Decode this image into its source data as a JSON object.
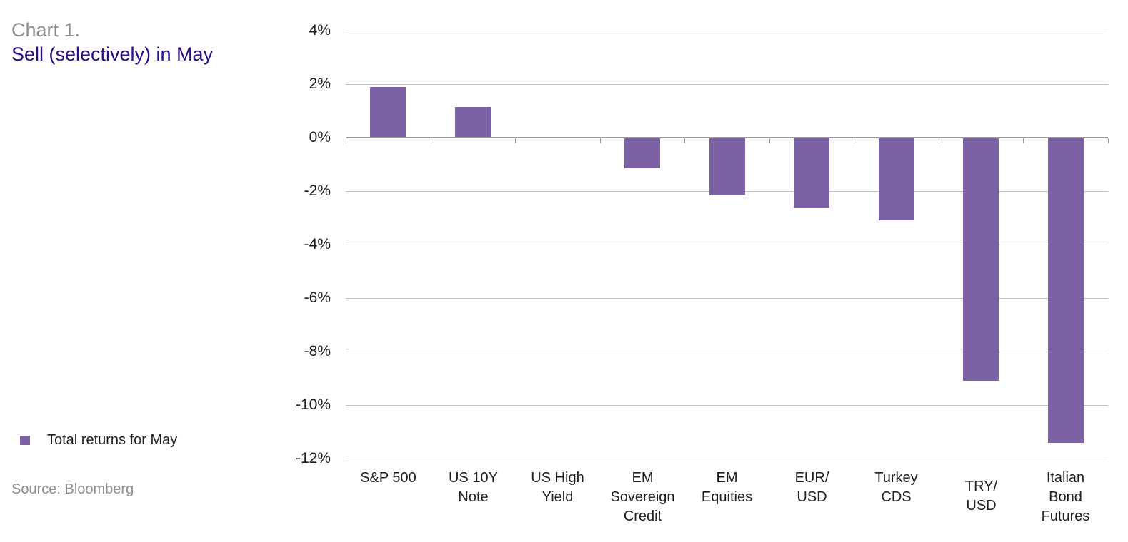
{
  "header": {
    "title": "Chart 1.",
    "subtitle": "Sell (selectively) in May"
  },
  "legend": {
    "label": "Total returns for May"
  },
  "source": {
    "text": "Source: Bloomberg"
  },
  "chart_data": {
    "type": "bar",
    "title": "Sell (selectively) in May",
    "series_name": "Total returns for May",
    "categories": [
      "S&P 500",
      "US 10Y Note",
      "US High Yield",
      "EM Sovereign Credit",
      "EM Equities",
      "EUR/USD",
      "Turkey CDS",
      "TRY/USD",
      "Italian Bond Futures"
    ],
    "category_label_lines": [
      "S&P 500",
      "US 10Y\nNote",
      "US High\nYield",
      "EM\nSovereign\nCredit",
      "EM\nEquities",
      "EUR/\nUSD",
      "Turkey\nCDS",
      "TRY/\nUSD",
      "Italian\nBond\nFutures"
    ],
    "values": [
      1.9,
      1.15,
      0.0,
      -1.15,
      -2.15,
      -2.6,
      -3.1,
      -9.1,
      -11.4
    ],
    "unit": "%",
    "ylabel": "",
    "xlabel": "",
    "ylim": [
      -12,
      4
    ],
    "ytick_step": 2,
    "yticks": [
      4,
      2,
      0,
      -2,
      -4,
      -6,
      -8,
      -10,
      -12
    ],
    "ytick_labels": [
      "4%",
      "2%",
      "0%",
      "-2%",
      "-4%",
      "-6%",
      "-8%",
      "-10%",
      "-12%"
    ],
    "grid": true,
    "legend_position": "bottom-left",
    "colors": {
      "bar": "#7d61a5",
      "gridline": "#c3c3c3",
      "axis_line": "#9b9b9b",
      "axis_text": "#1f1f1f",
      "title_gray": "#8e8e8e",
      "subtitle_indigo": "#2d0b8c"
    }
  }
}
